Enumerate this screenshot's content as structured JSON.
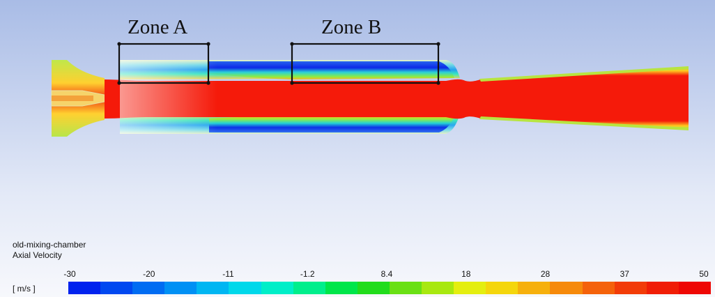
{
  "zones": [
    {
      "label": "Zone A"
    },
    {
      "label": "Zone B"
    }
  ],
  "case_name": "old-mixing-chamber",
  "variable": "Axial Velocity",
  "unit": "[ m/s ]",
  "legend": {
    "tick_labels": [
      "-30",
      "-20",
      "-11",
      "-1.2",
      "8.4",
      "18",
      "28",
      "37",
      "50"
    ],
    "colors": [
      "#0022ee",
      "#0048f0",
      "#006cf2",
      "#0090f4",
      "#00b6f2",
      "#00d8ea",
      "#00eec8",
      "#00ee8c",
      "#00e64a",
      "#22dc1c",
      "#6ae014",
      "#a8e810",
      "#e4ee10",
      "#f4d60c",
      "#f6b00c",
      "#f68a0a",
      "#f4620a",
      "#f23c08",
      "#f01e06",
      "#ee0804"
    ]
  },
  "colors": {
    "core": "#f51a0a",
    "recirculation": "#0a2ef0"
  }
}
